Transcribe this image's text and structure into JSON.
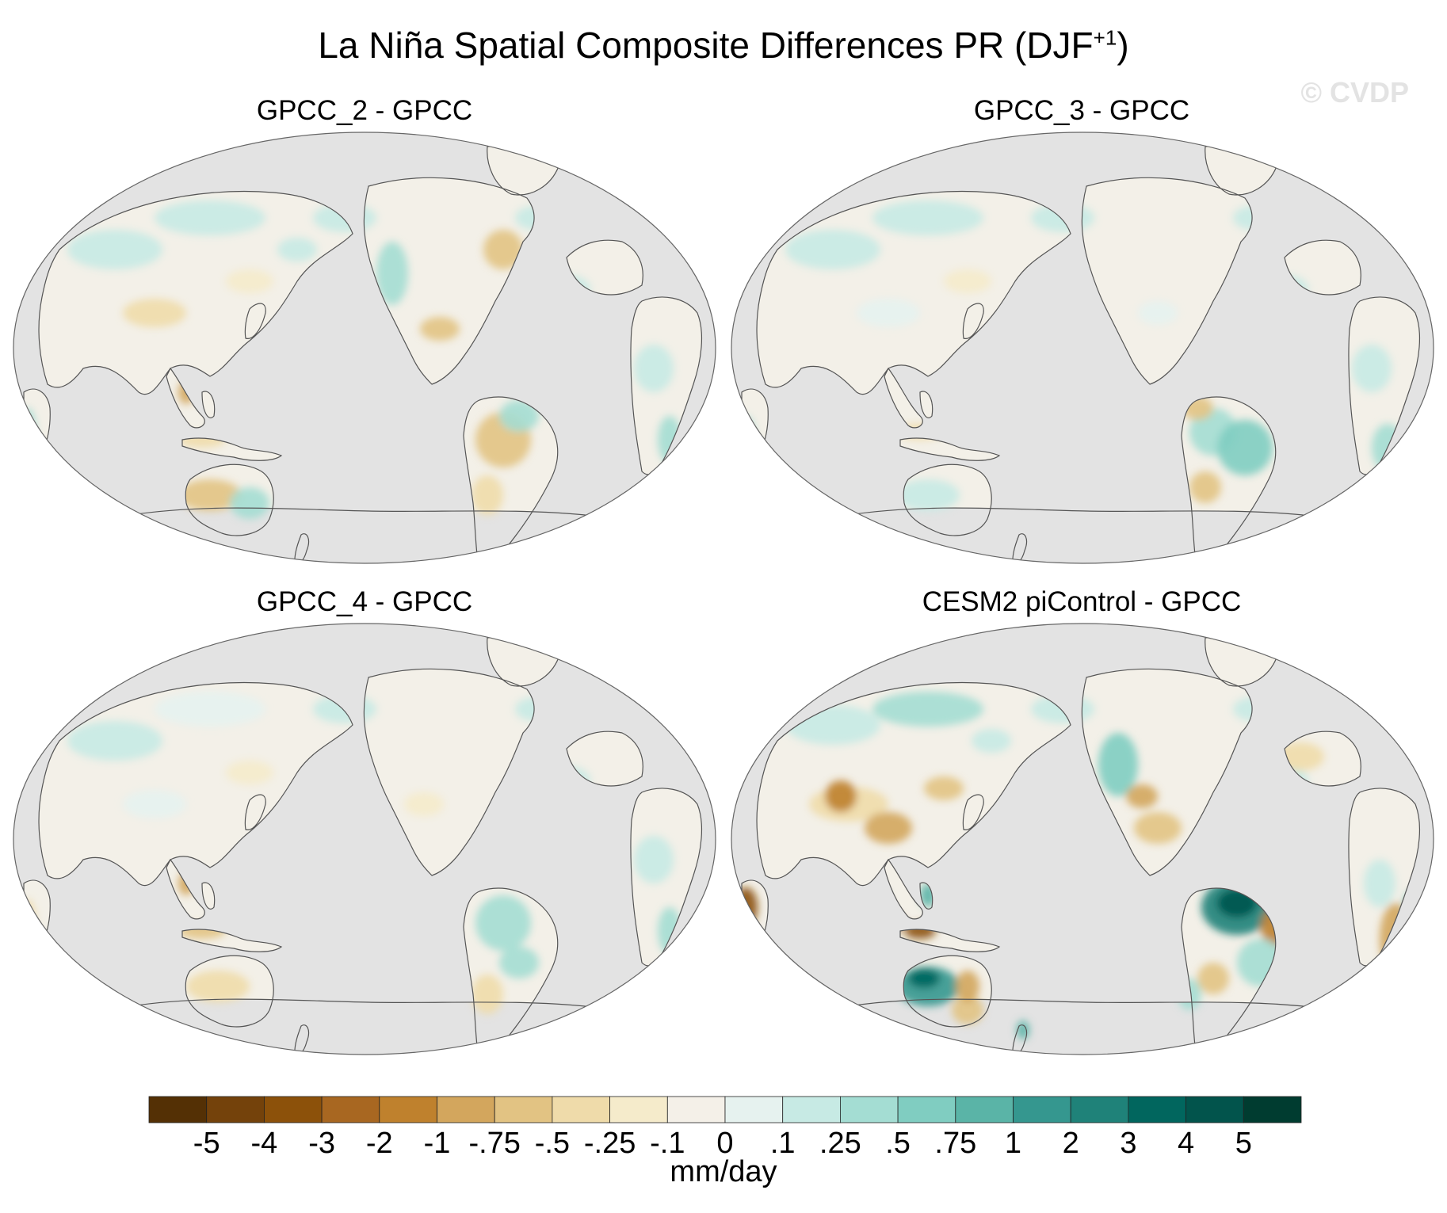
{
  "figure": {
    "title_main": "La Niña Spatial Composite Differences PR (DJF",
    "title_sup": "+1",
    "title_end": ")",
    "credit": "© CVDP"
  },
  "panels": [
    {
      "title": "GPCC_2 - GPCC"
    },
    {
      "title": "GPCC_3 - GPCC"
    },
    {
      "title": "GPCC_4 - GPCC"
    },
    {
      "title": "CESM2 piControl - GPCC"
    }
  ],
  "colorbar": {
    "units": "mm/day",
    "tick_labels": [
      "-5",
      "-4",
      "-3",
      "-2",
      "-1",
      "-.75",
      "-.5",
      "-.25",
      "-.1",
      "0",
      ".1",
      ".25",
      ".5",
      ".75",
      "1",
      "2",
      "3",
      "4",
      "5"
    ],
    "colors": [
      "#543005",
      "#74420b",
      "#8c510a",
      "#a86721",
      "#bf812d",
      "#d3a65d",
      "#e2c383",
      "#efdbaa",
      "#f5ebcb",
      "#f4f0e8",
      "#e6f2ef",
      "#c7eae4",
      "#a4ddd3",
      "#80cdc1",
      "#5ab4a7",
      "#35978f",
      "#1f8279",
      "#01665e",
      "#02544c",
      "#003c30"
    ]
  },
  "map_colors": {
    "ocean": "#e3e3e3",
    "land_neutral": "#f3f0e8",
    "coast": "#555555"
  }
}
